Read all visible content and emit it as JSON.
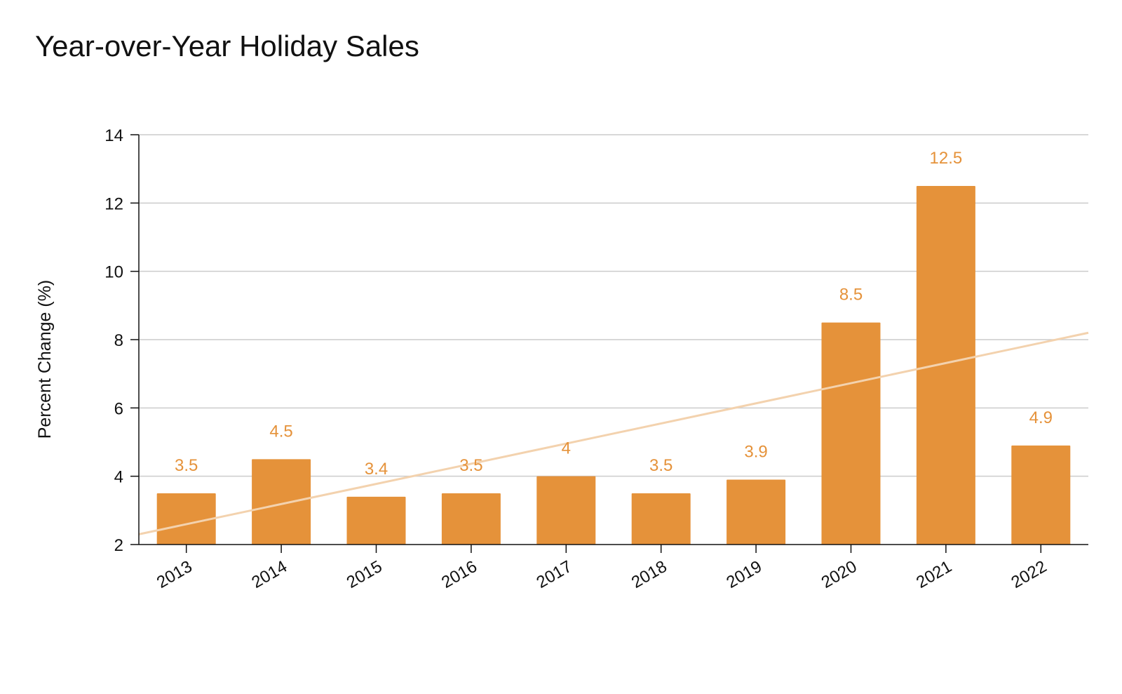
{
  "chart_data": {
    "type": "bar",
    "title": "Year-over-Year Holiday Sales",
    "xlabel": "",
    "ylabel": "Percent Change (%)",
    "categories": [
      "2013",
      "2014",
      "2015",
      "2016",
      "2017",
      "2018",
      "2019",
      "2020",
      "2021",
      "2022"
    ],
    "values": [
      3.5,
      4.5,
      3.4,
      3.5,
      4,
      3.5,
      3.9,
      8.5,
      12.5,
      4.9
    ],
    "data_labels": [
      "3.5",
      "4.5",
      "3.4",
      "3.5",
      "4",
      "3.5",
      "3.9",
      "8.5",
      "12.5",
      "4.9"
    ],
    "ylim": [
      2,
      14
    ],
    "yticks": [
      2,
      4,
      6,
      8,
      10,
      12,
      14
    ],
    "grid": true,
    "trendline": {
      "start_value": 2.3,
      "end_value": 8.2
    },
    "colors": {
      "bar": "#E5923A",
      "label": "#E5923A",
      "trend": "#F3D2AE",
      "grid": "#CCCCCC",
      "axis": "#111111"
    }
  }
}
